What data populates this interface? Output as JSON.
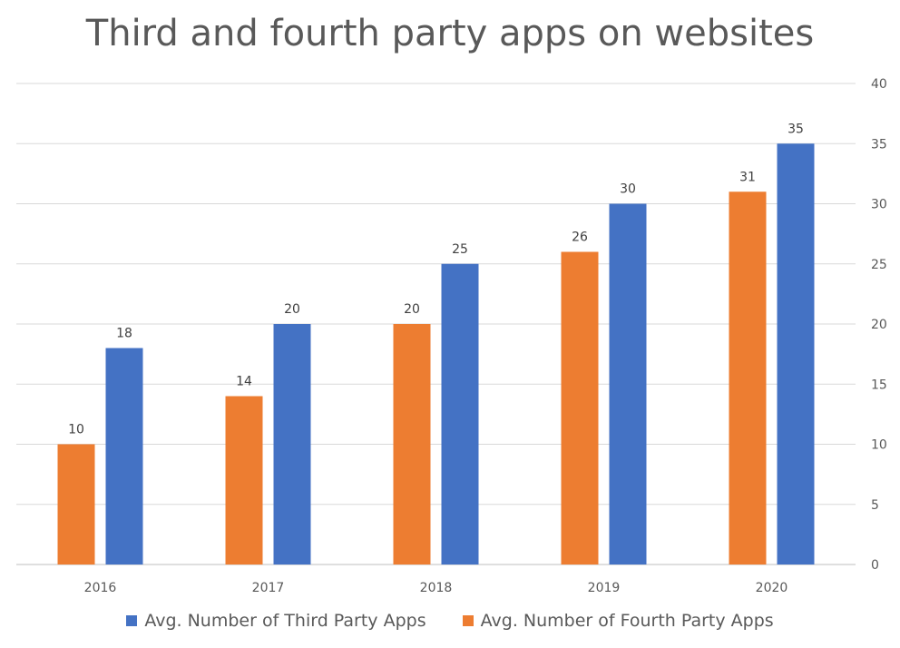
{
  "chart_data": {
    "type": "bar",
    "title": "Third and fourth party apps on websites",
    "xlabel": "",
    "ylabel": "",
    "categories": [
      "2016",
      "2017",
      "2018",
      "2019",
      "2020"
    ],
    "series": [
      {
        "name": "Avg. Number of Fourth Party Apps",
        "color": "#ed7d31",
        "values": [
          10,
          14,
          20,
          26,
          31
        ]
      },
      {
        "name": "Avg. Number of Third Party Apps",
        "color": "#4472c4",
        "values": [
          18,
          20,
          25,
          30,
          35
        ]
      }
    ],
    "ylim": [
      0,
      40
    ],
    "yticks": [
      0,
      5,
      10,
      15,
      20,
      25,
      30,
      35,
      40
    ],
    "y_axis_position": "right",
    "grid": true,
    "data_labels": true,
    "legend": {
      "position": "bottom",
      "order": [
        "Avg. Number of Third Party Apps",
        "Avg. Number of Fourth Party Apps"
      ]
    }
  }
}
